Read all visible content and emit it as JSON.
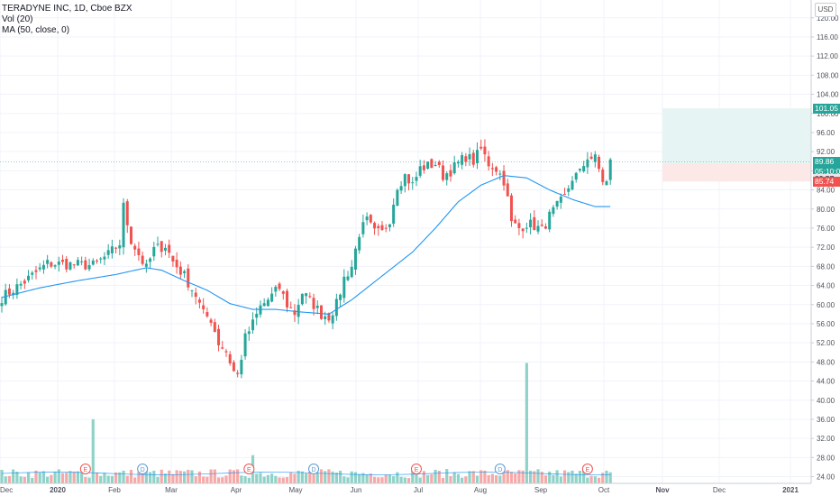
{
  "legend": {
    "title": "TERADYNE INC, 1D, Cboe BZX",
    "vol": "Vol (20)",
    "ma": "MA (50, close, 0)"
  },
  "currency_button": "USD",
  "price_labels": {
    "current": "89.86",
    "countdown": "05:10:07",
    "entry": "89.57",
    "target": "101.05",
    "stop": "85.74"
  },
  "colors": {
    "up": "#26a69a",
    "down": "#ef5350",
    "vol_up": "#8fd3c8",
    "vol_down": "#f7a9a7",
    "ma": "#2196f3",
    "target_zone": "#e6f5f3",
    "stop_zone": "#fde8e8",
    "last_price": "#26a69a",
    "stop_label": "#ef5350",
    "target_label": "#26a69a"
  },
  "chart_data": {
    "type": "candlestick",
    "x_axis": {
      "labels": [
        "Dec",
        "2020",
        "Feb",
        "Mar",
        "Apr",
        "May",
        "Jun",
        "Jul",
        "Aug",
        "Sep",
        "Oct",
        "Nov",
        "Dec",
        "2021"
      ],
      "bold": [
        "2020",
        "Nov",
        "2021"
      ]
    },
    "y_axis": {
      "ticks": [
        24,
        28,
        32,
        36,
        40,
        44,
        48,
        52,
        56,
        60,
        64,
        68,
        72,
        76,
        80,
        84,
        88,
        92,
        96,
        100,
        104,
        108,
        112,
        116,
        120
      ],
      "range": [
        22.5,
        121.5
      ]
    },
    "price_waypoints": [
      [
        0,
        61.5
      ],
      [
        6,
        64.8
      ],
      [
        12,
        68.6
      ],
      [
        18,
        68.4
      ],
      [
        24,
        68.2
      ],
      [
        28,
        70.4
      ],
      [
        31,
        72.8
      ],
      [
        32,
        80.5
      ],
      [
        34,
        73.5
      ],
      [
        36,
        70.5
      ],
      [
        38,
        67.5
      ],
      [
        40,
        71.5
      ],
      [
        43,
        72.4
      ],
      [
        45,
        69.0
      ],
      [
        48,
        66.0
      ],
      [
        51,
        62.0
      ],
      [
        53,
        58.0
      ],
      [
        55,
        57.0
      ],
      [
        57,
        52.0
      ],
      [
        59,
        50.2
      ],
      [
        61,
        46.0
      ],
      [
        62,
        45.2
      ],
      [
        64,
        53.0
      ],
      [
        66,
        56.0
      ],
      [
        68,
        59.5
      ],
      [
        70,
        61.0
      ],
      [
        73,
        63.5
      ],
      [
        75,
        60.0
      ],
      [
        77,
        58.2
      ],
      [
        79,
        62.5
      ],
      [
        82,
        60.0
      ],
      [
        84,
        58.0
      ],
      [
        86,
        57.5
      ],
      [
        88,
        60.0
      ],
      [
        90,
        65.5
      ],
      [
        92,
        68.0
      ],
      [
        94,
        75.0
      ],
      [
        96,
        77.5
      ],
      [
        98,
        75.0
      ],
      [
        100,
        75.0
      ],
      [
        102,
        78.0
      ],
      [
        104,
        85.0
      ],
      [
        106,
        87.0
      ],
      [
        108,
        85.0
      ],
      [
        110,
        88.5
      ],
      [
        112,
        89.0
      ],
      [
        114,
        89.5
      ],
      [
        116,
        87.0
      ],
      [
        118,
        88.0
      ],
      [
        120,
        89.5
      ],
      [
        122,
        91.0
      ],
      [
        124,
        90.0
      ],
      [
        126,
        92.5
      ],
      [
        128,
        89.5
      ],
      [
        130,
        88.5
      ],
      [
        132,
        86.0
      ],
      [
        133,
        82.0
      ],
      [
        134,
        77.0
      ],
      [
        136,
        76.0
      ],
      [
        138,
        77.0
      ],
      [
        140,
        76.5
      ],
      [
        142,
        75.5
      ],
      [
        144,
        78.5
      ],
      [
        146,
        80.5
      ],
      [
        148,
        82.5
      ],
      [
        150,
        86.5
      ],
      [
        152,
        87.5
      ],
      [
        154,
        91.0
      ],
      [
        156,
        90.5
      ],
      [
        158,
        86.0
      ],
      [
        159,
        85.5
      ],
      [
        160,
        89.8
      ]
    ],
    "ma50_waypoints": [
      [
        0,
        61.5
      ],
      [
        10,
        63.5
      ],
      [
        20,
        65.0
      ],
      [
        30,
        66.3
      ],
      [
        38,
        67.7
      ],
      [
        42,
        67.2
      ],
      [
        48,
        65.0
      ],
      [
        54,
        63.0
      ],
      [
        60,
        60.2
      ],
      [
        66,
        59.0
      ],
      [
        72,
        59.0
      ],
      [
        78,
        58.5
      ],
      [
        86,
        58.0
      ],
      [
        92,
        61.0
      ],
      [
        100,
        66.0
      ],
      [
        108,
        71.0
      ],
      [
        114,
        76.0
      ],
      [
        120,
        81.5
      ],
      [
        126,
        85.0
      ],
      [
        132,
        87.0
      ],
      [
        138,
        86.5
      ],
      [
        144,
        84.0
      ],
      [
        150,
        82.0
      ],
      [
        156,
        80.5
      ],
      [
        160,
        80.5
      ]
    ],
    "earnings_markers": [
      {
        "label": "E",
        "bar": 22
      },
      {
        "label": "D",
        "bar": 37
      },
      {
        "label": "E",
        "bar": 65
      },
      {
        "label": "D",
        "bar": 82
      },
      {
        "label": "E",
        "bar": 109
      },
      {
        "label": "D",
        "bar": 131
      },
      {
        "label": "E",
        "bar": 154
      }
    ],
    "volume_spikes": [
      {
        "bar": 24,
        "value": 36.0
      },
      {
        "bar": 66,
        "value": 28.5
      },
      {
        "bar": 138,
        "value": 47.8
      }
    ],
    "position": {
      "entry": 89.57,
      "target": 101.05,
      "stop": 85.74,
      "last": 89.86
    }
  }
}
